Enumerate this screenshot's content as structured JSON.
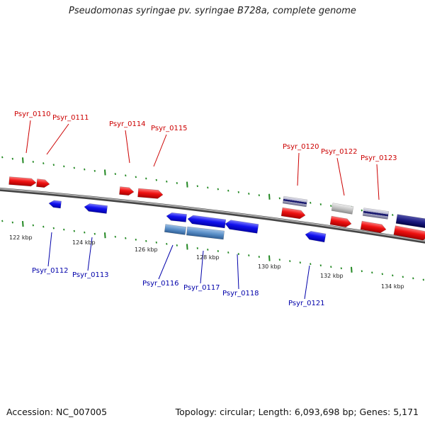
{
  "title": "Pseudomonas syringae pv. syringae B728a, complete genome",
  "footer": {
    "accession": "Accession: NC_007005",
    "topology": "Topology: circular; Length: 6,093,698 bp; Genes: 5,171"
  },
  "colors": {
    "forward_gene": "#ee1111",
    "reverse_gene": "#1111ee",
    "forward_label": "#cc0000",
    "reverse_label": "#0000aa",
    "ticks": "#228822",
    "backbone": "#777777"
  },
  "scale_labels": [
    "122 kbp",
    "124 kbp",
    "126 kbp",
    "128 kbp",
    "130 kbp",
    "132 kbp",
    "134 kbp"
  ],
  "genes_forward": [
    {
      "label": "Psyr_0110"
    },
    {
      "label": "Psyr_0111"
    },
    {
      "label": "Psyr_0114"
    },
    {
      "label": "Psyr_0115"
    },
    {
      "label": "Psyr_0120"
    },
    {
      "label": "Psyr_0122"
    },
    {
      "label": "Psyr_0123"
    }
  ],
  "genes_reverse": [
    {
      "label": "Psyr_0112"
    },
    {
      "label": "Psyr_0113"
    },
    {
      "label": "Psyr_0116"
    },
    {
      "label": "Psyr_0117"
    },
    {
      "label": "Psyr_0118"
    },
    {
      "label": "Psyr_0121"
    }
  ]
}
